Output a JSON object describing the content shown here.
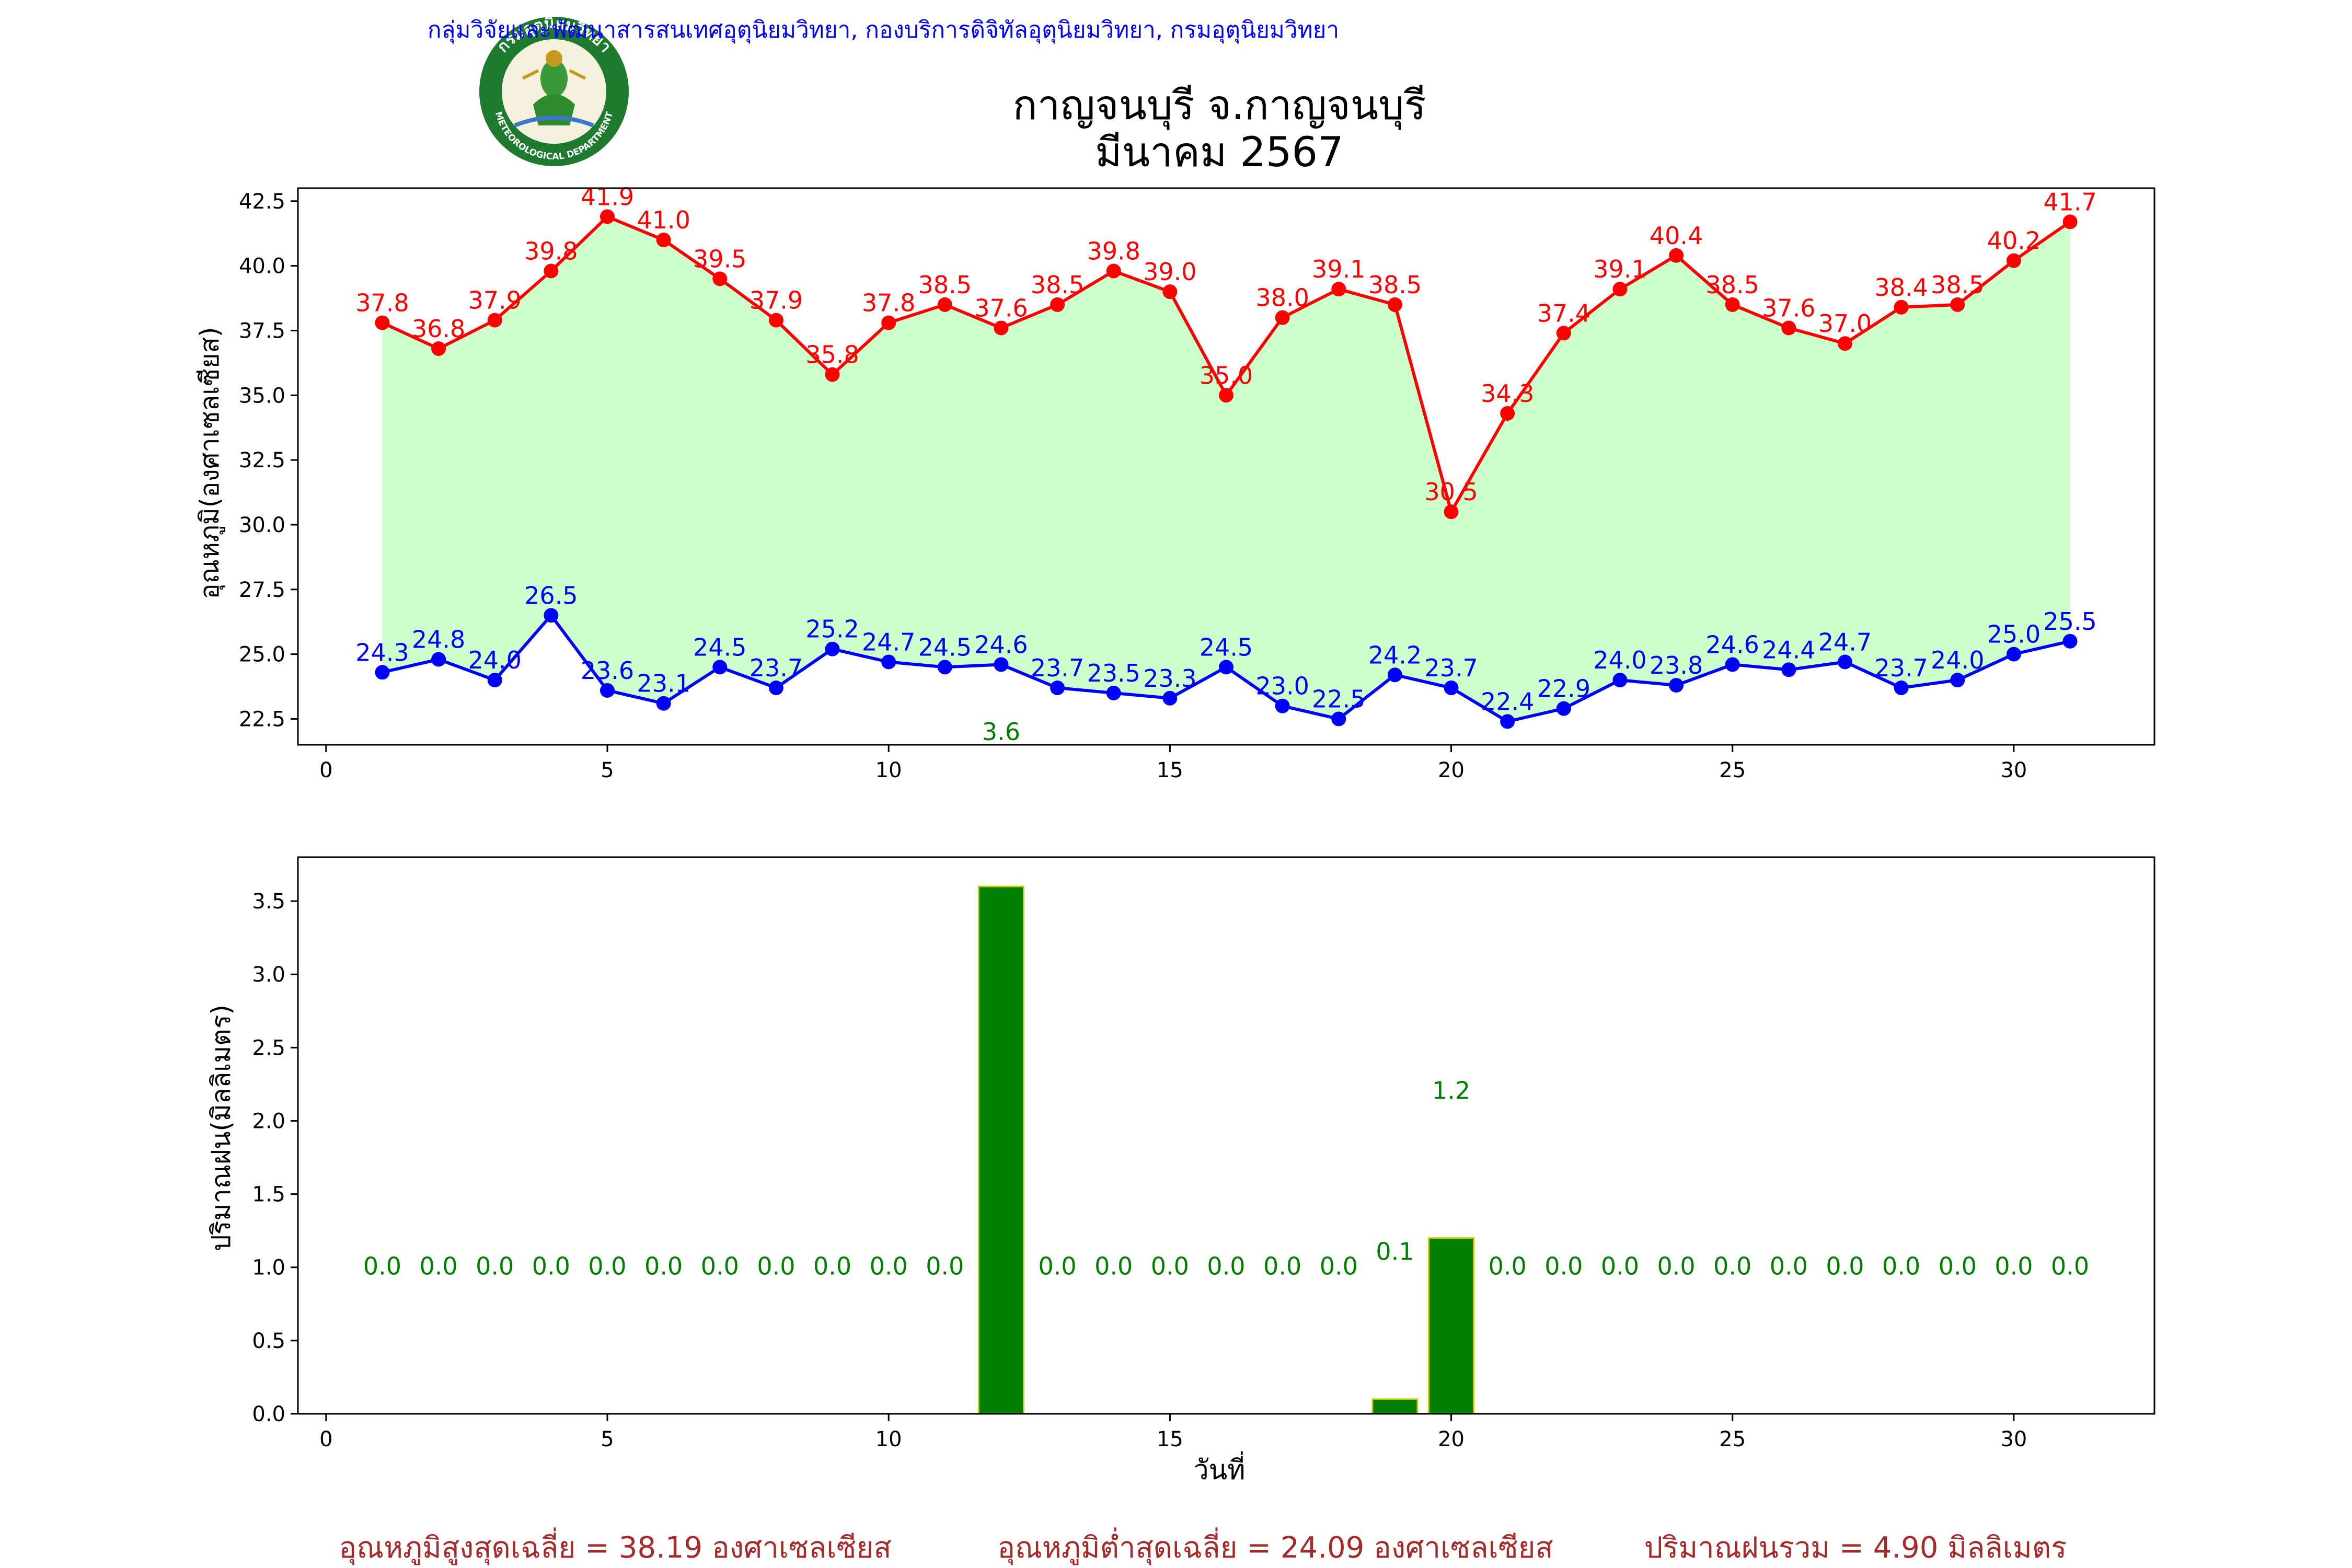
{
  "header": {
    "agency": "กลุ่มวิจัยและพัฒนาสารสนเทศอุตุนิยมวิทยา, กองบริการดิจิทัลอุตุนิยมวิทยา, กรมอุตุนิยมวิทยา",
    "logo_text_top": "กรมอุตุนิยมวิทยา",
    "logo_text_bottom": "METEOROLOGICAL DEPARTMENT",
    "title_line1": "กาญจนบุรี จ.กาญจนบุรี",
    "title_line2": "มีนาคม 2567"
  },
  "colors": {
    "tmax": "#ff0000",
    "tmin": "#0000ff",
    "fill": "#ccffcc",
    "bar": "#008000",
    "bar_edge": "#cccc00",
    "rain_label": "#008000",
    "summary": "#a52a2a",
    "header_text": "#0000ff"
  },
  "chart_data": [
    {
      "type": "line",
      "ylabel": "อุณหภูมิ(องศาเซลเซียส)",
      "xlim": [
        -0.5,
        32.5
      ],
      "ylim": [
        21.5,
        43.0
      ],
      "xticks": [
        0,
        5,
        10,
        15,
        20,
        25,
        30
      ],
      "yticks": [
        22.5,
        25.0,
        27.5,
        30.0,
        32.5,
        35.0,
        37.5,
        40.0,
        42.5
      ],
      "ytick_labels": [
        "22.5",
        "25.0",
        "27.5",
        "30.0",
        "32.5",
        "35.0",
        "37.5",
        "40.0",
        "42.5"
      ],
      "x": [
        1,
        2,
        3,
        4,
        5,
        6,
        7,
        8,
        9,
        10,
        11,
        12,
        13,
        14,
        15,
        16,
        17,
        18,
        19,
        20,
        21,
        22,
        23,
        24,
        25,
        26,
        27,
        28,
        29,
        30,
        31
      ],
      "series": [
        {
          "key": "tmax",
          "values": [
            37.8,
            36.8,
            37.9,
            39.8,
            41.9,
            41.0,
            39.5,
            37.9,
            35.8,
            37.8,
            38.5,
            37.6,
            38.5,
            39.8,
            39.0,
            35.0,
            38.0,
            39.1,
            38.5,
            30.5,
            34.3,
            37.4,
            39.1,
            40.4,
            38.5,
            37.6,
            37.0,
            38.4,
            38.5,
            40.2,
            41.7
          ]
        },
        {
          "key": "tmin",
          "values": [
            24.3,
            24.8,
            24.0,
            26.5,
            23.6,
            23.1,
            24.5,
            23.7,
            25.2,
            24.7,
            24.5,
            24.6,
            23.7,
            23.5,
            23.3,
            24.5,
            23.0,
            22.5,
            24.2,
            23.7,
            22.4,
            22.9,
            24.0,
            23.8,
            24.6,
            24.4,
            24.7,
            23.7,
            24.0,
            25.0,
            25.5
          ]
        }
      ],
      "annotation": {
        "x": 12,
        "y": 22.0,
        "text": "3.6"
      }
    },
    {
      "type": "bar",
      "xlabel": "วันที่",
      "ylabel": "ปริมาณฝน(มิลลิเมตร)",
      "xlim": [
        -0.5,
        32.5
      ],
      "ylim": [
        0.0,
        3.8
      ],
      "xticks": [
        0,
        5,
        10,
        15,
        20,
        25,
        30
      ],
      "yticks": [
        0.0,
        0.5,
        1.0,
        1.5,
        2.0,
        2.5,
        3.0,
        3.5
      ],
      "ytick_labels": [
        "0.0",
        "0.5",
        "1.0",
        "1.5",
        "2.0",
        "2.5",
        "3.0",
        "3.5"
      ],
      "x": [
        1,
        2,
        3,
        4,
        5,
        6,
        7,
        8,
        9,
        10,
        11,
        12,
        13,
        14,
        15,
        16,
        17,
        18,
        19,
        20,
        21,
        22,
        23,
        24,
        25,
        26,
        27,
        28,
        29,
        30,
        31
      ],
      "values": [
        0,
        0,
        0,
        0,
        0,
        0,
        0,
        0,
        0,
        0,
        0,
        3.6,
        0,
        0,
        0,
        0,
        0,
        0,
        0.1,
        1.2,
        0,
        0,
        0,
        0,
        0,
        0,
        0,
        0,
        0,
        0,
        0
      ],
      "labels": [
        {
          "x": 1,
          "y": 1.0,
          "text": "0.0"
        },
        {
          "x": 2,
          "y": 1.0,
          "text": "0.0"
        },
        {
          "x": 3,
          "y": 1.0,
          "text": "0.0"
        },
        {
          "x": 4,
          "y": 1.0,
          "text": "0.0"
        },
        {
          "x": 5,
          "y": 1.0,
          "text": "0.0"
        },
        {
          "x": 6,
          "y": 1.0,
          "text": "0.0"
        },
        {
          "x": 7,
          "y": 1.0,
          "text": "0.0"
        },
        {
          "x": 8,
          "y": 1.0,
          "text": "0.0"
        },
        {
          "x": 9,
          "y": 1.0,
          "text": "0.0"
        },
        {
          "x": 10,
          "y": 1.0,
          "text": "0.0"
        },
        {
          "x": 11,
          "y": 1.0,
          "text": "0.0"
        },
        {
          "x": 13,
          "y": 1.0,
          "text": "0.0"
        },
        {
          "x": 14,
          "y": 1.0,
          "text": "0.0"
        },
        {
          "x": 15,
          "y": 1.0,
          "text": "0.0"
        },
        {
          "x": 16,
          "y": 1.0,
          "text": "0.0"
        },
        {
          "x": 17,
          "y": 1.0,
          "text": "0.0"
        },
        {
          "x": 18,
          "y": 1.0,
          "text": "0.0"
        },
        {
          "x": 19,
          "y": 1.1,
          "text": "0.1"
        },
        {
          "x": 20,
          "y": 2.2,
          "text": "1.2"
        },
        {
          "x": 21,
          "y": 1.0,
          "text": "0.0"
        },
        {
          "x": 22,
          "y": 1.0,
          "text": "0.0"
        },
        {
          "x": 23,
          "y": 1.0,
          "text": "0.0"
        },
        {
          "x": 24,
          "y": 1.0,
          "text": "0.0"
        },
        {
          "x": 25,
          "y": 1.0,
          "text": "0.0"
        },
        {
          "x": 26,
          "y": 1.0,
          "text": "0.0"
        },
        {
          "x": 27,
          "y": 1.0,
          "text": "0.0"
        },
        {
          "x": 28,
          "y": 1.0,
          "text": "0.0"
        },
        {
          "x": 29,
          "y": 1.0,
          "text": "0.0"
        },
        {
          "x": 30,
          "y": 1.0,
          "text": "0.0"
        },
        {
          "x": 31,
          "y": 1.0,
          "text": "0.0"
        }
      ]
    }
  ],
  "summary": {
    "avg_max": "อุณหภูมิสูงสุดเฉลี่ย = 38.19 องศาเซลเซียส",
    "avg_min": "อุณหภูมิต่ำสุดเฉลี่ย = 24.09 องศาเซลเซียส",
    "total_rain": "ปริมาณฝนรวม = 4.90 มิลลิเมตร"
  }
}
